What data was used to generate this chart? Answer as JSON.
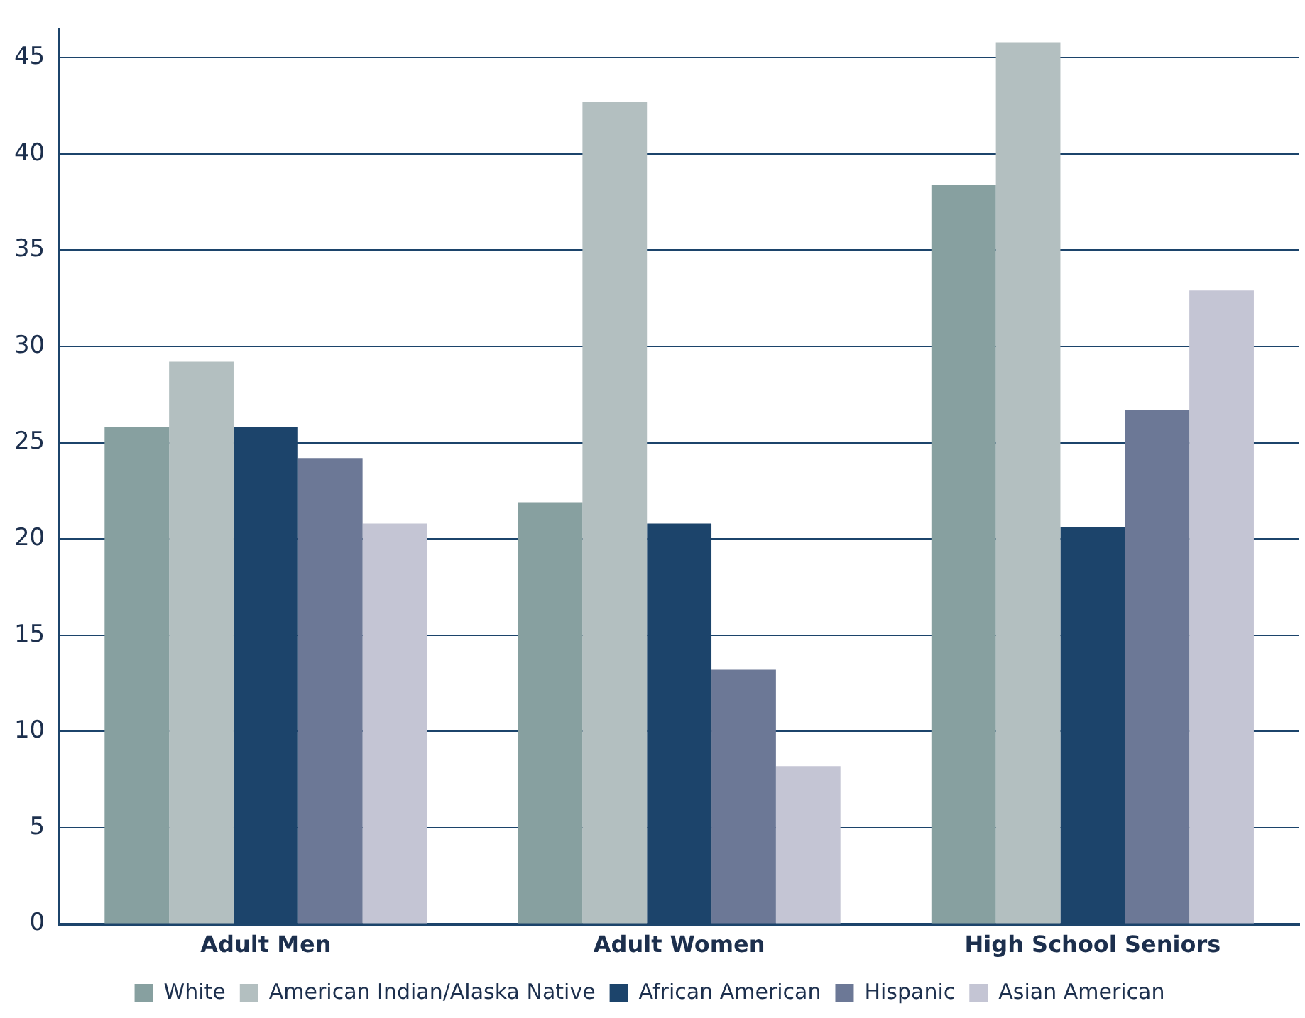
{
  "chart_data": {
    "type": "bar",
    "categories": [
      "Adult Men",
      "Adult Women",
      "High School Seniors"
    ],
    "series": [
      {
        "name": "White",
        "color": "#87a0a0",
        "values": [
          25.8,
          21.9,
          38.4
        ]
      },
      {
        "name": "American Indian/Alaska Native",
        "color": "#b3bfc0",
        "values": [
          29.2,
          42.7,
          45.8
        ]
      },
      {
        "name": "African American",
        "color": "#1c446b",
        "values": [
          25.8,
          20.8,
          20.6
        ]
      },
      {
        "name": "Hispanic",
        "color": "#6c7896",
        "values": [
          24.2,
          13.2,
          26.7
        ]
      },
      {
        "name": "Asian American",
        "color": "#c4c5d4",
        "values": [
          20.8,
          8.2,
          32.9
        ]
      }
    ],
    "ylim": [
      0,
      46.5
    ],
    "yticks": [
      0,
      5,
      10,
      15,
      20,
      25,
      30,
      35,
      40,
      45
    ],
    "grid": "y",
    "legend": "bottom"
  }
}
